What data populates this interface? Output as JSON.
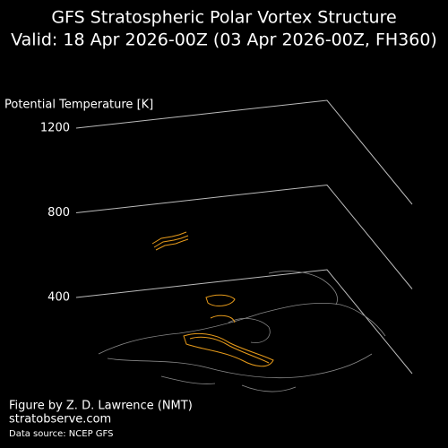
{
  "chart_data": {
    "type": "vortex3d",
    "title": "GFS Stratospheric Polar Vortex Structure",
    "subtitle": "Valid: 18 Apr 2026-00Z  (03 Apr 2026-00Z, FH360)",
    "zlabel": "Potential Temperature [K]",
    "zlim": [
      400,
      1200
    ],
    "zticks": [
      400,
      800,
      1200
    ],
    "annotations": [
      "Figure by Z. D. Lawrence (NMT)",
      "stratobserve.com",
      "Data source: NCEP GFS"
    ]
  }
}
